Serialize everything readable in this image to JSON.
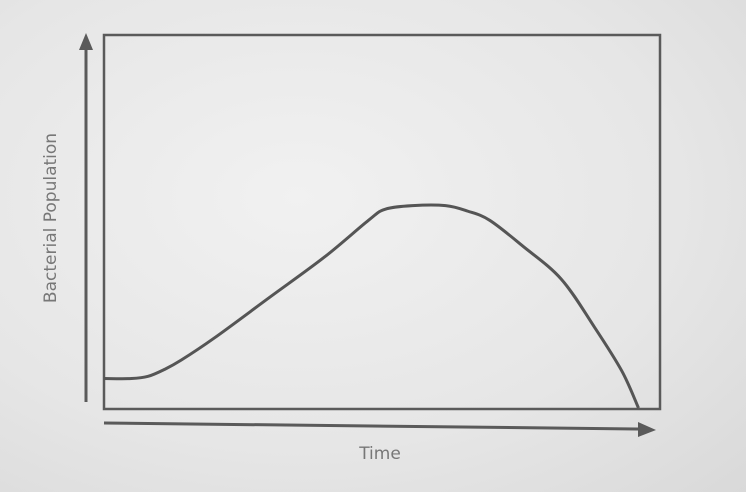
{
  "chart_data": {
    "type": "line",
    "title": "",
    "xlabel": "Time",
    "ylabel": "Bacterial Population",
    "xlim": [
      0,
      100
    ],
    "ylim": [
      0,
      100
    ],
    "grid": false,
    "axis_ticks": false,
    "series": [
      {
        "x": [
          0,
          5,
          8,
          11,
          14,
          20,
          30,
          40,
          48,
          51,
          56,
          62,
          66,
          70,
          76,
          83,
          89,
          94,
          97
        ],
        "values": [
          8,
          8,
          8.6,
          10.5,
          13,
          19,
          30,
          41,
          51,
          54,
          55,
          55,
          53.5,
          51,
          44,
          35,
          22,
          10,
          0
        ]
      }
    ],
    "line_color": "#555555"
  }
}
